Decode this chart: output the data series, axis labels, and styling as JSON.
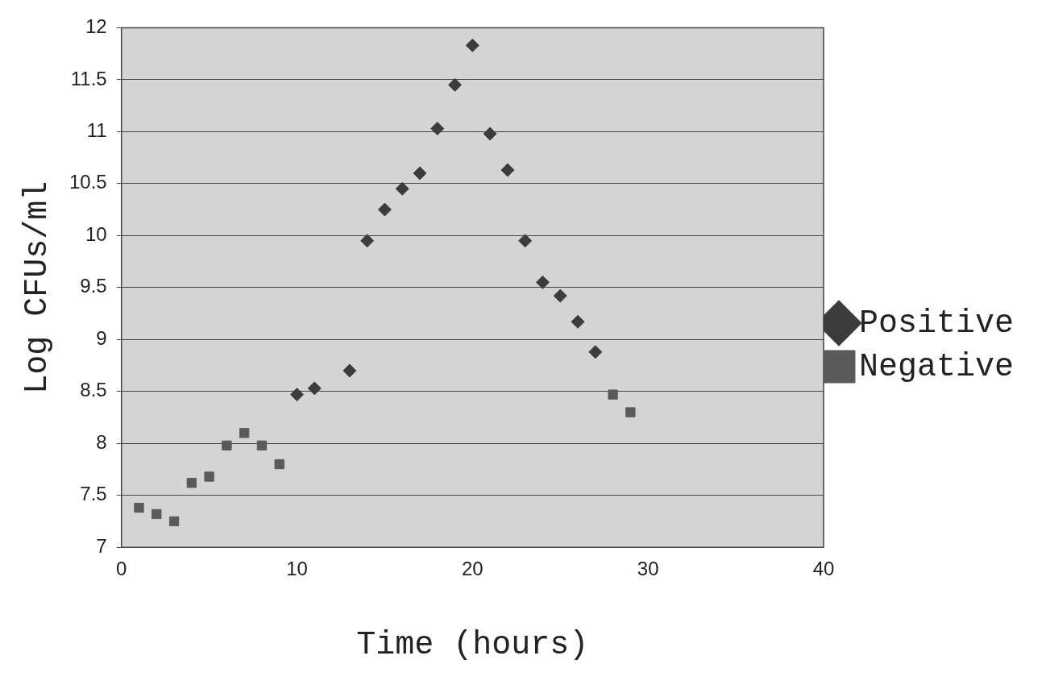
{
  "chart_data": {
    "type": "scatter",
    "xlabel": "Time (hours)",
    "ylabel": "Log CFUs/ml",
    "xlim": [
      0,
      40
    ],
    "xticks": [
      0,
      10,
      20,
      30,
      40
    ],
    "ylim": [
      7,
      12
    ],
    "yticks": [
      7,
      7.5,
      8,
      8.5,
      9,
      9.5,
      10,
      10.5,
      11,
      11.5,
      12
    ],
    "grid": "y",
    "legend": "right",
    "series": [
      {
        "name": "Positive",
        "color": "#3c3c3c",
        "marker": "diamond",
        "x": [
          10,
          11,
          13,
          14,
          15,
          16,
          17,
          18,
          19,
          20,
          21,
          22,
          23,
          24,
          25,
          26,
          27
        ],
        "values": [
          8.47,
          8.53,
          8.7,
          9.95,
          10.25,
          10.45,
          10.6,
          11.03,
          11.45,
          11.83,
          10.98,
          10.63,
          9.95,
          9.55,
          9.42,
          9.17,
          8.88
        ]
      },
      {
        "name": "Negative",
        "color": "#5a5a5a",
        "marker": "square",
        "x": [
          1,
          2,
          3,
          4,
          5,
          6,
          7,
          8,
          9,
          28,
          29
        ],
        "values": [
          7.38,
          7.32,
          7.25,
          7.62,
          7.68,
          7.98,
          8.1,
          7.98,
          7.8,
          8.47,
          8.3
        ]
      }
    ]
  }
}
